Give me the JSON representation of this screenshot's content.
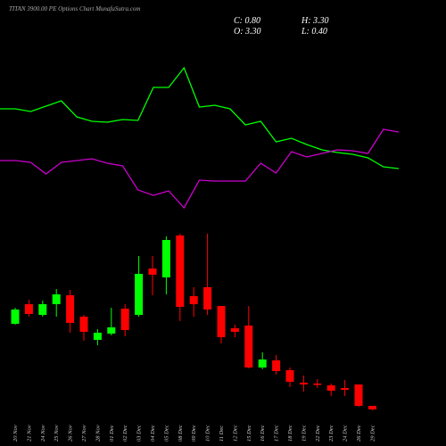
{
  "chart_data": {
    "type": "candlestick",
    "title": "TITAN 3900.00 PE Options Chart MunafaSutra.com",
    "ohlc_labels": [
      "C: 0.80",
      "H: 3.30",
      "O: 3.30",
      "L: 0.40"
    ],
    "categories": [
      "20 Nov",
      "21 Nov",
      "24 Nov",
      "25 Nov",
      "26 Nov",
      "27 Nov",
      "28 Nov",
      "01 Dec",
      "02 Dec",
      "03 Dec",
      "04 Dec",
      "05 Dec",
      "08 Dec",
      "09 Dec",
      "10 Dec",
      "11 Dec",
      "12 Dec",
      "15 Dec",
      "16 Dec",
      "17 Dec",
      "18 Dec",
      "19 Dec",
      "22 Dec",
      "23 Dec",
      "24 Dec",
      "26 Dec",
      "29 Dec"
    ],
    "open": [
      10.7,
      12.9,
      11.7,
      12.9,
      13.9,
      11.5,
      8.9,
      9.6,
      12.4,
      11.7,
      16.9,
      15.9,
      20.6,
      13.8,
      14.8,
      12.7,
      10.2,
      10.5,
      5.8,
      6.6,
      5.5,
      4.1,
      4.0,
      3.8,
      3.5,
      3.9,
      1.5
    ],
    "high": [
      12.5,
      13.4,
      13.3,
      14.6,
      14.5,
      11.7,
      10.1,
      12.5,
      12.9,
      18.3,
      18.3,
      20.5,
      20.8,
      14.8,
      20.8,
      12.7,
      10.6,
      12.7,
      7.5,
      7.2,
      5.8,
      4.9,
      4.5,
      4.0,
      4.4,
      3.9,
      1.5
    ],
    "low": [
      10.6,
      11.5,
      11.5,
      11.5,
      9.7,
      8.8,
      8.3,
      9.4,
      9.3,
      11.5,
      13.9,
      14.0,
      11.0,
      11.5,
      11.7,
      8.5,
      9.2,
      5.7,
      5.6,
      5.0,
      3.6,
      3.1,
      3.5,
      2.6,
      2.6,
      1.4,
      1.0
    ],
    "close": [
      12.3,
      11.8,
      12.9,
      14.0,
      10.8,
      9.8,
      9.7,
      10.3,
      10.0,
      16.3,
      16.2,
      20.1,
      12.6,
      12.9,
      12.3,
      9.2,
      9.8,
      5.8,
      6.7,
      5.4,
      4.2,
      3.9,
      3.9,
      3.2,
      3.3,
      1.5,
      1.1
    ],
    "up_color": "#00ff00",
    "down_color": "#ff0000",
    "ylim": [
      0,
      21
    ],
    "lines": [
      {
        "color": "#00ff00",
        "values": [
          13.8,
          13.8,
          13.5,
          14.1,
          14.7,
          12.9,
          12.4,
          12.3,
          12.6,
          12.5,
          16.2,
          16.2,
          18.4,
          14.0,
          14.2,
          13.8,
          12.0,
          12.4,
          10.1,
          10.5,
          9.8,
          9.2,
          8.9,
          8.7,
          8.3,
          7.3,
          7.1
        ]
      },
      {
        "color": "#cc00cc",
        "values": [
          8.0,
          8.0,
          7.8,
          6.5,
          7.8,
          8.0,
          8.2,
          7.7,
          7.4,
          4.7,
          4.1,
          4.6,
          2.7,
          5.8,
          5.7,
          5.7,
          5.7,
          7.7,
          6.6,
          9.0,
          8.4,
          8.8,
          9.2,
          9.1,
          8.8,
          11.5,
          11.2
        ]
      }
    ],
    "lines_ylim": [
      0,
      20
    ]
  }
}
